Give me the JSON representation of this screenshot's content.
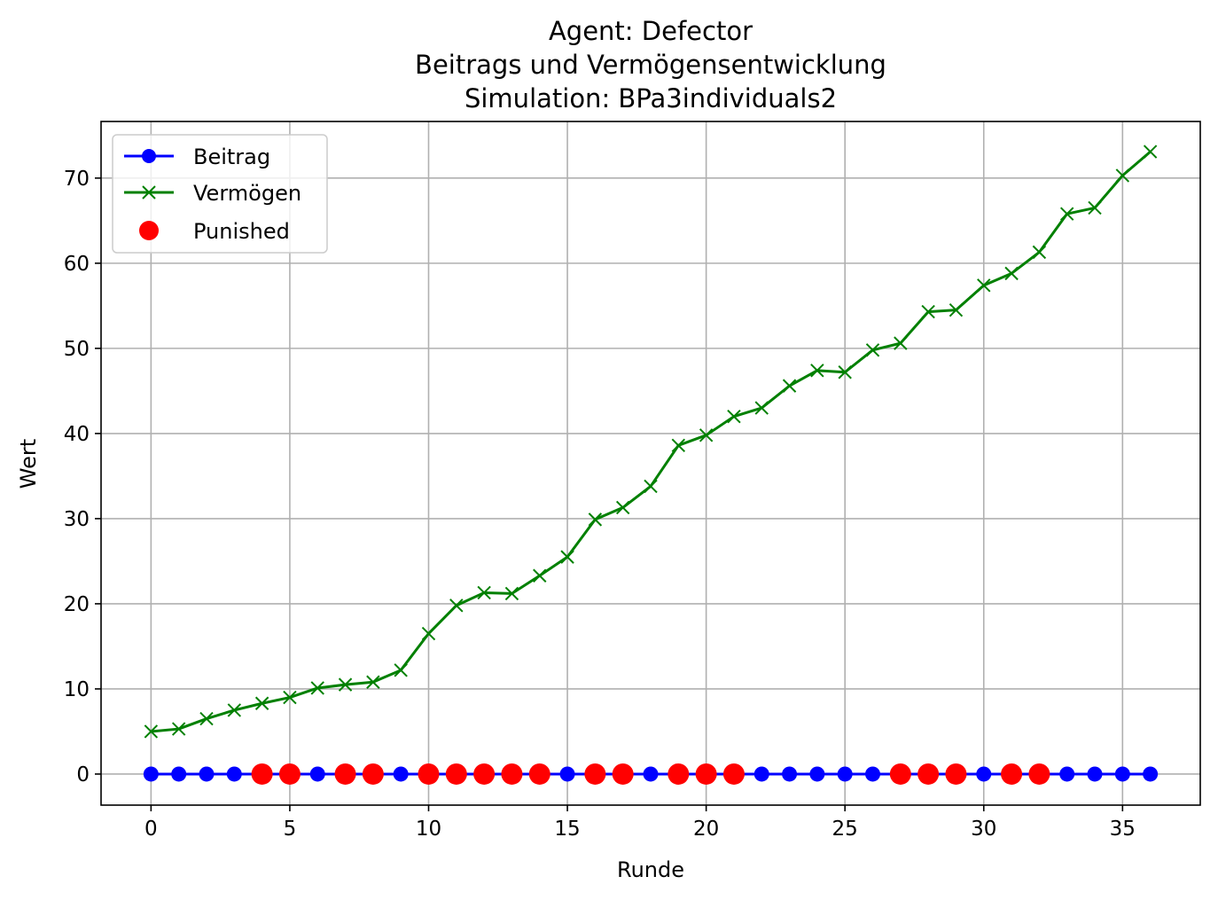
{
  "chart_data": {
    "type": "line",
    "title_lines": [
      "Agent: Defector",
      "Beitrags und Vermögensentwicklung",
      "Simulation: BPa3individuals2"
    ],
    "xlabel": "Runde",
    "ylabel": "Wert",
    "xlim": [
      -1.8,
      37.8
    ],
    "ylim": [
      -3.65,
      76.65
    ],
    "xticks": [
      0,
      5,
      10,
      15,
      20,
      25,
      30,
      35
    ],
    "yticks": [
      0,
      10,
      20,
      30,
      40,
      50,
      60,
      70
    ],
    "grid": true,
    "legend_position": "upper left",
    "x": [
      0,
      1,
      2,
      3,
      4,
      5,
      6,
      7,
      8,
      9,
      10,
      11,
      12,
      13,
      14,
      15,
      16,
      17,
      18,
      19,
      20,
      21,
      22,
      23,
      24,
      25,
      26,
      27,
      28,
      29,
      30,
      31,
      32,
      33,
      34,
      35,
      36
    ],
    "series": [
      {
        "name": "Beitrag",
        "color": "#0000ff",
        "marker": "circle",
        "values": [
          0,
          0,
          0,
          0,
          0,
          0,
          0,
          0,
          0,
          0,
          0,
          0,
          0,
          0,
          0,
          0,
          0,
          0,
          0,
          0,
          0,
          0,
          0,
          0,
          0,
          0,
          0,
          0,
          0,
          0,
          0,
          0,
          0,
          0,
          0,
          0,
          0
        ]
      },
      {
        "name": "Vermögen",
        "color": "#008000",
        "marker": "x",
        "values": [
          5.0,
          5.3,
          6.5,
          7.5,
          8.3,
          9.0,
          10.1,
          10.5,
          10.8,
          12.2,
          16.5,
          19.8,
          21.3,
          21.2,
          23.3,
          25.5,
          29.9,
          31.3,
          33.8,
          38.6,
          39.8,
          42.0,
          43.0,
          45.6,
          47.4,
          47.2,
          49.8,
          50.6,
          54.3,
          54.5,
          57.4,
          58.8,
          61.3,
          65.8,
          66.5,
          70.3,
          73.1
        ]
      }
    ],
    "punished": {
      "name": "Punished",
      "color": "#ff0000",
      "x": [
        4,
        5,
        7,
        8,
        10,
        11,
        12,
        13,
        14,
        16,
        17,
        19,
        20,
        21,
        27,
        28,
        29,
        31,
        32
      ],
      "y": [
        0,
        0,
        0,
        0,
        0,
        0,
        0,
        0,
        0,
        0,
        0,
        0,
        0,
        0,
        0,
        0,
        0,
        0,
        0
      ]
    },
    "grid_color": "#b0b0b0"
  }
}
